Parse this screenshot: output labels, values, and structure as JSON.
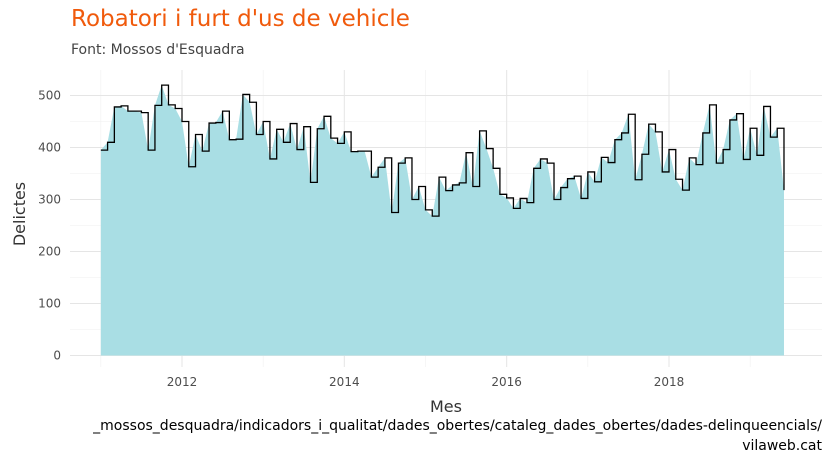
{
  "title": "Robatori i furt d'us de vehicle",
  "subtitle": "Font: Mossos d'Esquadra",
  "caption_line1": "_mossos_desquadra/indicadors_i_qualitat/dades_obertes/cataleg_dades_obertes/dades-delinqueencials/",
  "caption_line2": "vilaweb.cat",
  "colors": {
    "title": "#f05a0c",
    "area": "#a9dee4",
    "step": "#000000",
    "grid": "#e5e5e5"
  },
  "chart_data": {
    "type": "area",
    "xlabel": "Mes",
    "ylabel": "Delictes",
    "x_ticks": [
      "2012",
      "2014",
      "2016",
      "2018"
    ],
    "y_ticks": [
      "0",
      "100",
      "200",
      "300",
      "400",
      "500"
    ],
    "ylim": [
      0,
      545
    ],
    "grid": true,
    "start": "2011-01",
    "end": "2019-06",
    "values": [
      395,
      410,
      478,
      480,
      470,
      470,
      467,
      395,
      481,
      520,
      482,
      475,
      450,
      363,
      425,
      393,
      447,
      448,
      470,
      415,
      416,
      502,
      487,
      425,
      450,
      378,
      435,
      410,
      446,
      396,
      440,
      333,
      436,
      460,
      418,
      408,
      430,
      392,
      393,
      393,
      343,
      362,
      380,
      275,
      370,
      380,
      300,
      325,
      280,
      268,
      343,
      317,
      328,
      332,
      390,
      325,
      432,
      398,
      360,
      310,
      303,
      283,
      302,
      294,
      360,
      378,
      370,
      300,
      323,
      340,
      345,
      302,
      353,
      334,
      381,
      371,
      415,
      428,
      464,
      338,
      387,
      445,
      430,
      353,
      396,
      339,
      318,
      380,
      367,
      428,
      482,
      370,
      396,
      453,
      465,
      377,
      437,
      385,
      479,
      420,
      437,
      318
    ]
  }
}
